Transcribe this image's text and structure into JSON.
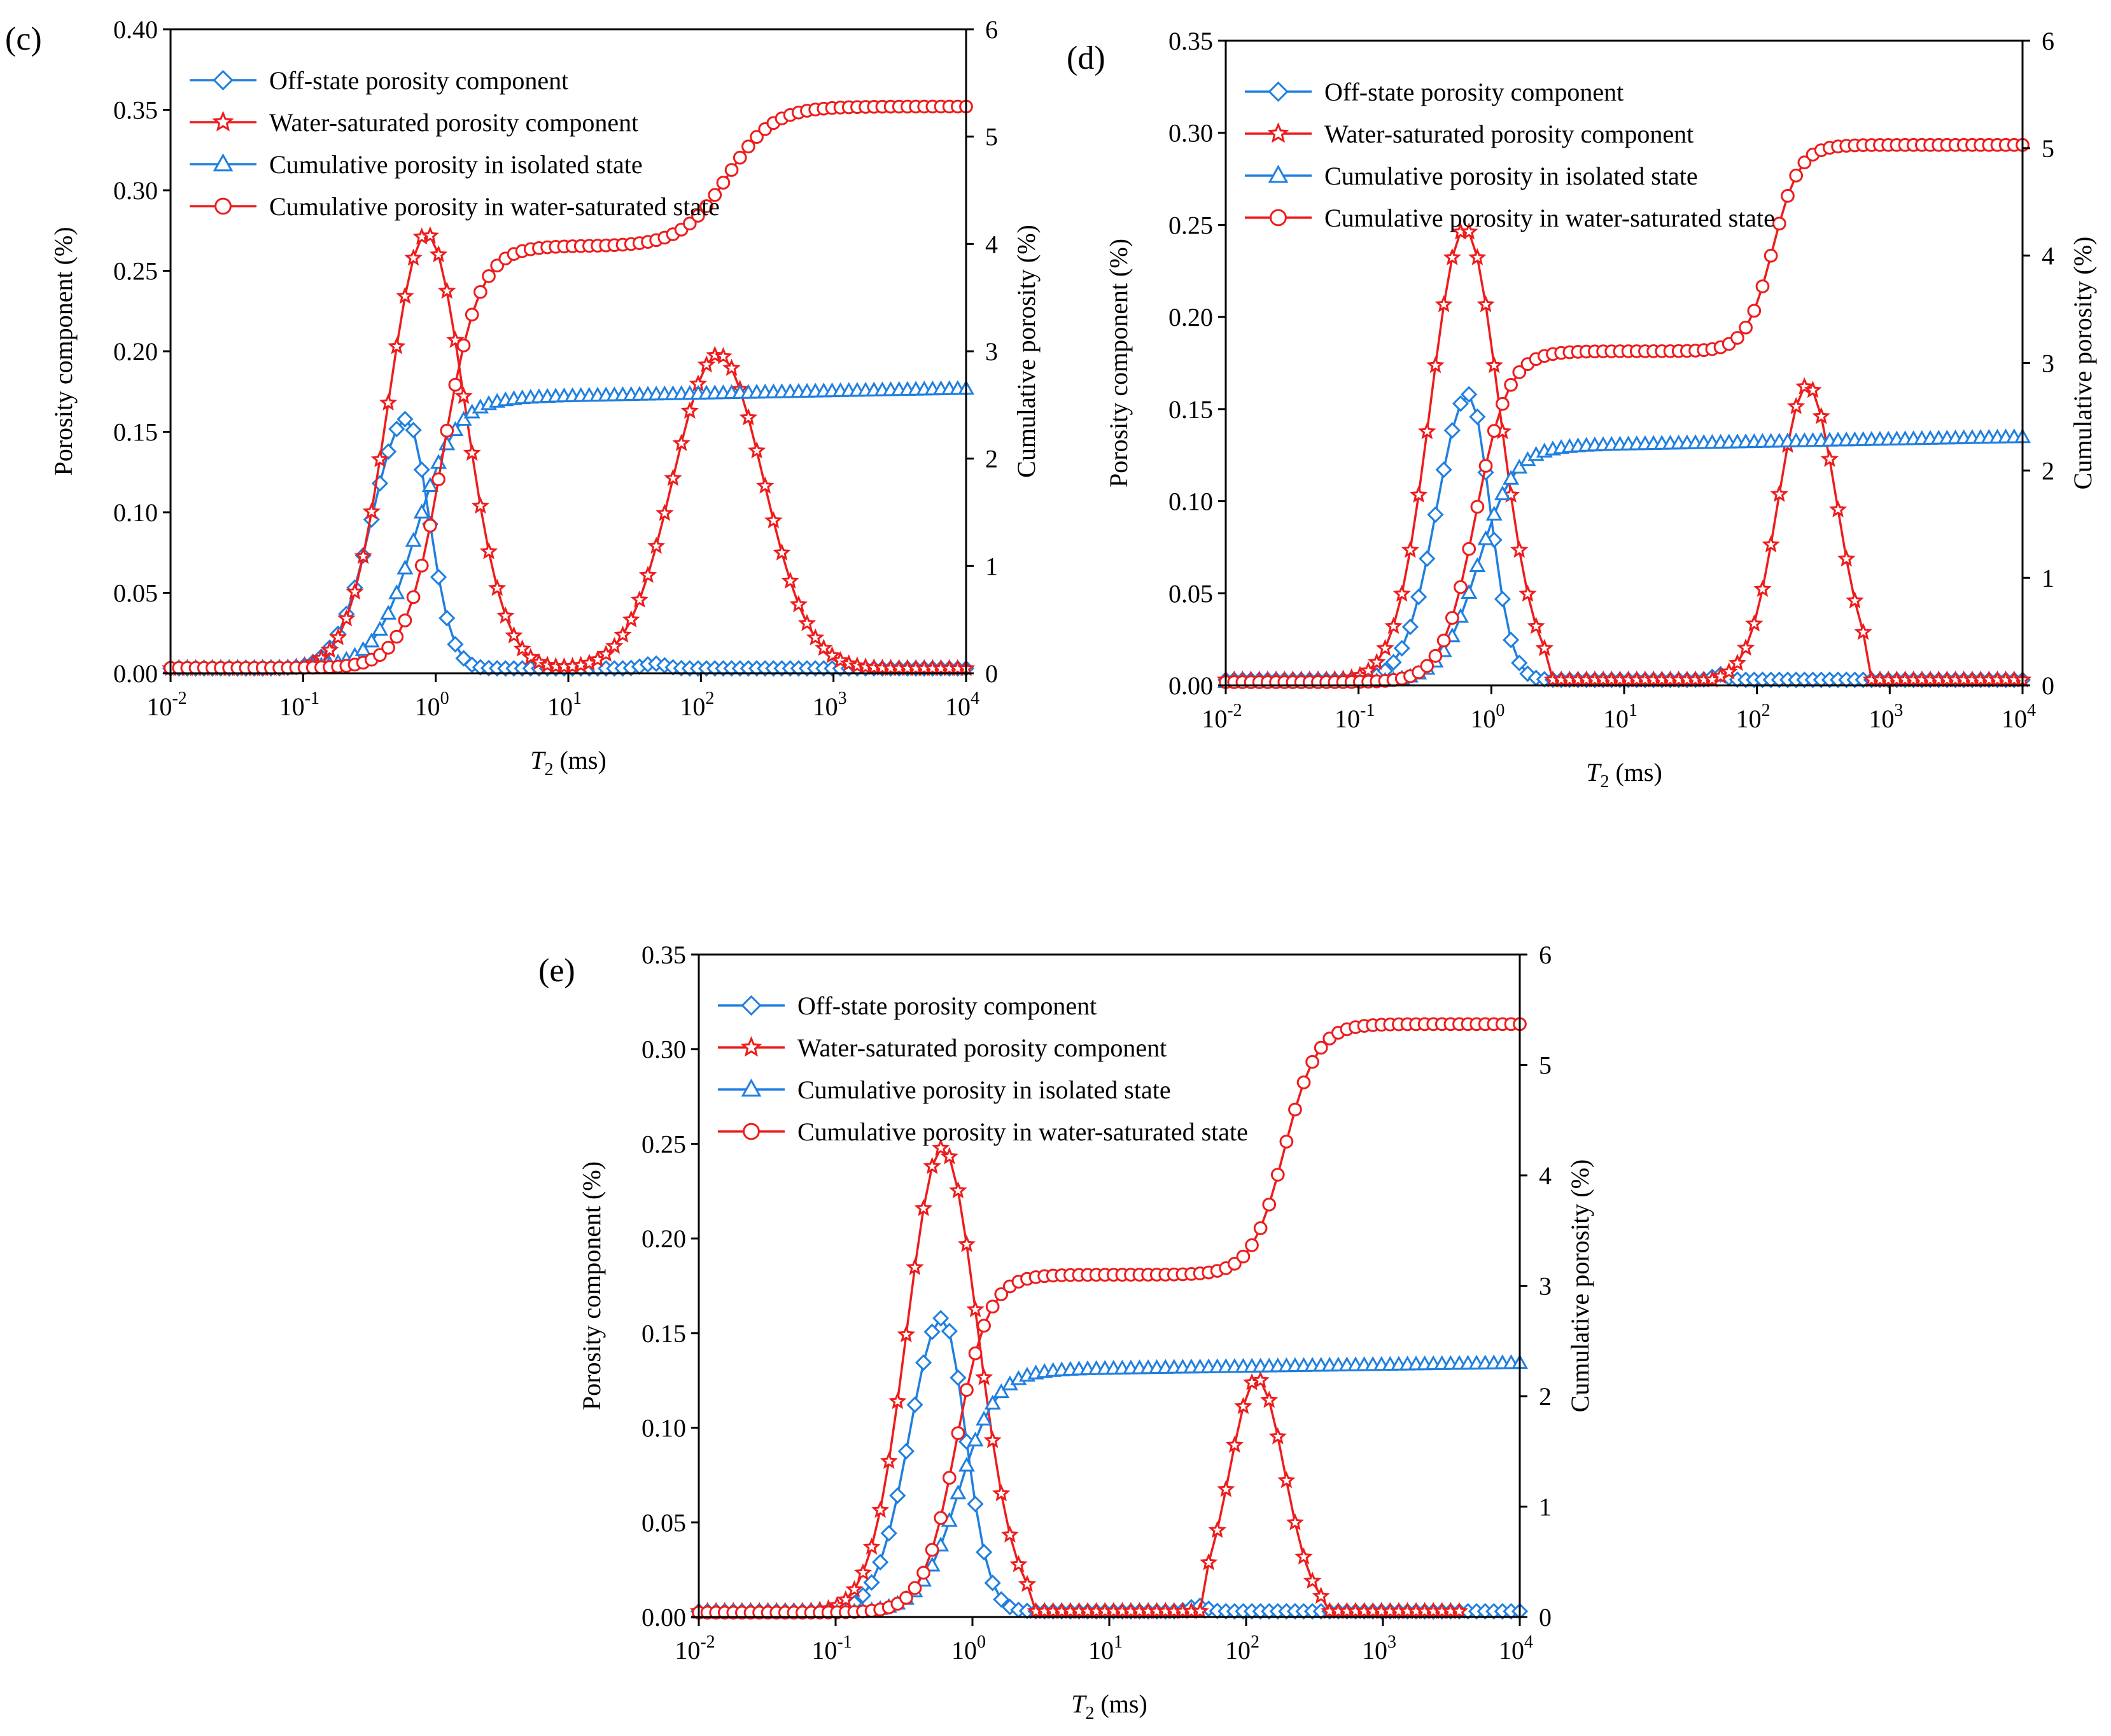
{
  "colors": {
    "blue": "#1f7fe0",
    "red": "#ee1c1c",
    "axis": "#000000"
  },
  "legend": [
    {
      "label": "Off-state porosity component",
      "color": "#1f7fe0",
      "marker": "diamond-icon"
    },
    {
      "label": "Water-saturated porosity component",
      "color": "#ee1c1c",
      "marker": "star-icon"
    },
    {
      "label": "Cumulative porosity in isolated state",
      "color": "#1f7fe0",
      "marker": "triangle-icon"
    },
    {
      "label": "Cumulative porosity in water-saturated state",
      "color": "#ee1c1c",
      "marker": "circle-icon"
    }
  ],
  "chart_data": [
    {
      "type": "line",
      "panel_label": "(c)",
      "xlabel_italic": "T",
      "xlabel_sub": "2",
      "xlabel_unit": " (ms)",
      "ylabel": "Porosity component (%)",
      "y2label": "Cumulative porosity (%)",
      "xscale": "log",
      "xlim": [
        0.01,
        10000
      ],
      "ylim": [
        0,
        0.4
      ],
      "yticks": [
        "0.00",
        "0.05",
        "0.10",
        "0.15",
        "0.20",
        "0.25",
        "0.30",
        "0.35",
        "0.40"
      ],
      "y2lim": [
        0,
        6
      ],
      "y2ticks": [
        "0",
        "1",
        "2",
        "3",
        "4",
        "5",
        "6"
      ],
      "legend_position": "top-left",
      "series": [
        {
          "name": "Off-state porosity component",
          "axis": "left",
          "marker": "diamond",
          "components": [
            {
              "log_center": -0.22,
              "sigma": 0.26,
              "amplitude": 0.155,
              "right_sigma": 0.17
            },
            {
              "log_center": 1.65,
              "sigma": 0.08,
              "amplitude": 0.003
            }
          ],
          "baseline": 0.003
        },
        {
          "name": "Water-saturated porosity component",
          "axis": "left",
          "marker": "star",
          "components": [
            {
              "log_center": -0.07,
              "sigma": 0.29,
              "amplitude": 0.27
            },
            {
              "log_center": 2.13,
              "sigma": 0.34,
              "amplitude": 0.195
            }
          ],
          "baseline": 0.003
        },
        {
          "name": "Cumulative porosity in isolated state",
          "axis": "right",
          "marker": "triangle",
          "steps": [
            {
              "log_center": -0.15,
              "width": 0.33,
              "height": 2.52
            }
          ],
          "drift": 0.08,
          "baseline": 0.05
        },
        {
          "name": "Cumulative porosity in water-saturated state",
          "axis": "right",
          "marker": "circle",
          "steps": [
            {
              "log_center": 0.05,
              "width": 0.3,
              "height": 3.93
            },
            {
              "log_center": 2.2,
              "width": 0.38,
              "height": 1.3
            }
          ],
          "baseline": 0.05
        }
      ]
    },
    {
      "type": "line",
      "panel_label": "(d)",
      "xlabel_italic": "T",
      "xlabel_sub": "2",
      "xlabel_unit": " (ms)",
      "ylabel": "Porosity component (%)",
      "y2label": "Cumulative porosity (%)",
      "xscale": "log",
      "xlim": [
        0.01,
        10000
      ],
      "ylim": [
        0,
        0.35
      ],
      "yticks": [
        "0.00",
        "0.05",
        "0.10",
        "0.15",
        "0.20",
        "0.25",
        "0.30",
        "0.35"
      ],
      "y2lim": [
        0,
        6
      ],
      "y2ticks": [
        "0",
        "1",
        "2",
        "3",
        "4",
        "5",
        "6"
      ],
      "legend_position": "top-left",
      "series": [
        {
          "name": "Off-state porosity component",
          "axis": "left",
          "marker": "diamond",
          "components": [
            {
              "log_center": -0.17,
              "sigma": 0.24,
              "amplitude": 0.155,
              "right_sigma": 0.16
            },
            {
              "log_center": 1.72,
              "sigma": 0.05,
              "amplitude": 0.003
            }
          ],
          "baseline": 0.003
        },
        {
          "name": "Water-saturated porosity component",
          "axis": "left",
          "marker": "star",
          "components": [
            {
              "log_center": -0.2,
              "sigma": 0.26,
              "amplitude": 0.245,
              "cut_right": 0.4
            },
            {
              "log_center": 2.38,
              "sigma": 0.22,
              "amplitude": 0.16,
              "cut_left": 1.72,
              "cut_right": 2.85
            }
          ],
          "baseline": 0.003
        },
        {
          "name": "Cumulative porosity in isolated state",
          "axis": "right",
          "marker": "triangle",
          "steps": [
            {
              "log_center": -0.1,
              "width": 0.3,
              "height": 2.2
            }
          ],
          "drift": 0.08,
          "baseline": 0.03
        },
        {
          "name": "Cumulative porosity in water-saturated state",
          "axis": "right",
          "marker": "circle",
          "steps": [
            {
              "log_center": -0.12,
              "width": 0.27,
              "height": 3.08
            },
            {
              "log_center": 2.12,
              "width": 0.22,
              "height": 1.92
            }
          ],
          "baseline": 0.03
        }
      ]
    },
    {
      "type": "line",
      "panel_label": "(e)",
      "xlabel_italic": "T",
      "xlabel_sub": "2",
      "xlabel_unit": " (ms)",
      "ylabel": "Porosity component (%)",
      "y2label": "Cumulative porosity (%)",
      "xscale": "log",
      "xlim": [
        0.01,
        10000
      ],
      "ylim": [
        0,
        0.35
      ],
      "yticks": [
        "0.00",
        "0.05",
        "0.10",
        "0.15",
        "0.20",
        "0.25",
        "0.30",
        "0.35"
      ],
      "y2lim": [
        0,
        6
      ],
      "y2ticks": [
        "0",
        "1",
        "2",
        "3",
        "4",
        "5",
        "6"
      ],
      "legend_position": "top-left",
      "series": [
        {
          "name": "Off-state porosity component",
          "axis": "left",
          "marker": "diamond",
          "components": [
            {
              "log_center": -0.22,
              "sigma": 0.24,
              "amplitude": 0.155,
              "right_sigma": 0.17
            },
            {
              "log_center": 1.65,
              "sigma": 0.06,
              "amplitude": 0.003
            }
          ],
          "baseline": 0.003
        },
        {
          "name": "Water-saturated porosity component",
          "axis": "left",
          "marker": "star",
          "components": [
            {
              "log_center": -0.22,
              "sigma": 0.26,
              "amplitude": 0.245,
              "cut_right": 0.45
            },
            {
              "log_center": 2.08,
              "sigma": 0.2,
              "amplitude": 0.123,
              "cut_left": 1.7,
              "cut_right": 2.6
            }
          ],
          "baseline": 0.003,
          "end": 3.6
        },
        {
          "name": "Cumulative porosity in isolated state",
          "axis": "right",
          "marker": "triangle",
          "steps": [
            {
              "log_center": -0.1,
              "width": 0.3,
              "height": 2.2
            }
          ],
          "drift": 0.06,
          "baseline": 0.04
        },
        {
          "name": "Cumulative porosity in water-saturated state",
          "axis": "right",
          "marker": "circle",
          "steps": [
            {
              "log_center": -0.12,
              "width": 0.26,
              "height": 3.06
            },
            {
              "log_center": 2.28,
              "width": 0.26,
              "height": 2.27
            }
          ],
          "baseline": 0.04
        }
      ]
    }
  ]
}
